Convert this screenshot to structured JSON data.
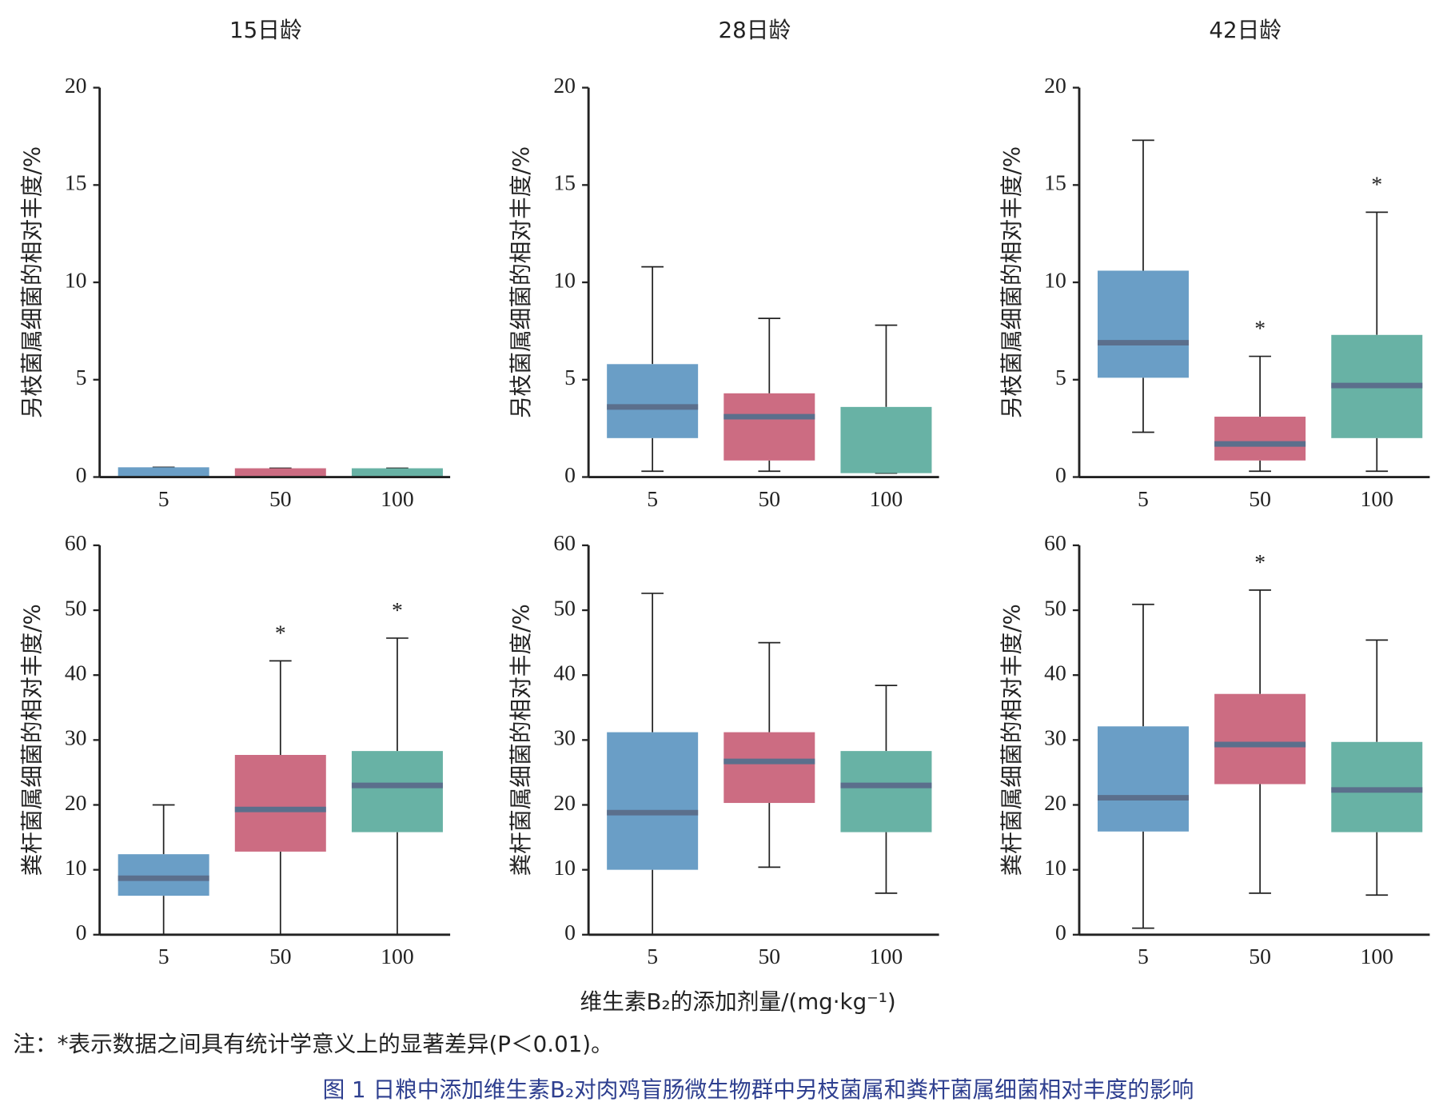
{
  "chart_data": [
    {
      "type": "box",
      "title": "15日龄",
      "ylabel": "另枝菌属细菌的相对丰度/%",
      "categories": [
        "5",
        "50",
        "100"
      ],
      "ylim": [
        0,
        20
      ],
      "yticks": [
        0,
        5,
        10,
        15,
        20
      ],
      "colors": [
        "#6a9ec6",
        "#cc6c82",
        "#68b2a5"
      ],
      "median_color": "#5b6f8c",
      "boxes": [
        {
          "min": 0,
          "q1": 0,
          "median": 0,
          "q3": 0.5,
          "max": 0.5
        },
        {
          "min": 0,
          "q1": 0,
          "median": 0,
          "q3": 0.45,
          "max": 0.45
        },
        {
          "min": 0,
          "q1": 0,
          "median": 0,
          "q3": 0.45,
          "max": 0.45
        }
      ],
      "annotations": [
        null,
        null,
        null
      ]
    },
    {
      "type": "box",
      "title": "28日龄",
      "ylabel": "另枝菌属细菌的相对丰度/%",
      "categories": [
        "5",
        "50",
        "100"
      ],
      "ylim": [
        0,
        20
      ],
      "yticks": [
        0,
        5,
        10,
        15,
        20
      ],
      "colors": [
        "#6a9ec6",
        "#cc6c82",
        "#68b2a5"
      ],
      "median_color": "#5b6f8c",
      "boxes": [
        {
          "min": 0.3,
          "q1": 2.0,
          "median": 3.6,
          "q3": 5.8,
          "max": 10.8
        },
        {
          "min": 0.3,
          "q1": 0.85,
          "median": 3.1,
          "q3": 4.3,
          "max": 8.15
        },
        {
          "min": 0.2,
          "q1": 0.2,
          "median": 0.2,
          "q3": 3.6,
          "max": 7.8
        }
      ],
      "annotations": [
        null,
        null,
        null
      ]
    },
    {
      "type": "box",
      "title": "42日龄",
      "ylabel": "另枝菌属细菌的相对丰度/%",
      "categories": [
        "5",
        "50",
        "100"
      ],
      "ylim": [
        0,
        20
      ],
      "yticks": [
        0,
        5,
        10,
        15,
        20
      ],
      "colors": [
        "#6a9ec6",
        "#cc6c82",
        "#68b2a5"
      ],
      "median_color": "#5b6f8c",
      "boxes": [
        {
          "min": 2.3,
          "q1": 5.1,
          "median": 6.9,
          "q3": 10.6,
          "max": 17.3
        },
        {
          "min": 0.3,
          "q1": 0.85,
          "median": 1.7,
          "q3": 3.1,
          "max": 6.2
        },
        {
          "min": 0.3,
          "q1": 2.0,
          "median": 4.7,
          "q3": 7.3,
          "max": 13.6
        }
      ],
      "annotations": [
        null,
        "*",
        "*"
      ]
    },
    {
      "type": "box",
      "ylabel": "粪杆菌属细菌的相对丰度/%",
      "categories": [
        "5",
        "50",
        "100"
      ],
      "ylim": [
        0,
        60
      ],
      "yticks": [
        0,
        10,
        20,
        30,
        40,
        50,
        60
      ],
      "colors": [
        "#6a9ec6",
        "#cc6c82",
        "#68b2a5"
      ],
      "median_color": "#5b6f8c",
      "boxes": [
        {
          "min": 0,
          "q1": 6.0,
          "median": 8.7,
          "q3": 12.4,
          "max": 20
        },
        {
          "min": 0,
          "q1": 12.8,
          "median": 19.3,
          "q3": 27.7,
          "max": 42.2
        },
        {
          "min": 0,
          "q1": 15.8,
          "median": 23.0,
          "q3": 28.3,
          "max": 45.7
        }
      ],
      "annotations": [
        null,
        "*",
        "*"
      ]
    },
    {
      "type": "box",
      "ylabel": "粪杆菌属细菌的相对丰度/%",
      "categories": [
        "5",
        "50",
        "100"
      ],
      "ylim": [
        0,
        60
      ],
      "yticks": [
        0,
        10,
        20,
        30,
        40,
        50,
        60
      ],
      "colors": [
        "#6a9ec6",
        "#cc6c82",
        "#68b2a5"
      ],
      "median_color": "#5b6f8c",
      "boxes": [
        {
          "min": 0,
          "q1": 10.0,
          "median": 18.8,
          "q3": 31.2,
          "max": 52.6
        },
        {
          "min": 10.4,
          "q1": 20.3,
          "median": 26.7,
          "q3": 31.2,
          "max": 45
        },
        {
          "min": 6.4,
          "q1": 15.8,
          "median": 23.0,
          "q3": 28.3,
          "max": 38.4
        }
      ],
      "annotations": [
        null,
        null,
        null
      ]
    },
    {
      "type": "box",
      "ylabel": "粪杆菌属细菌的相对丰度/%",
      "categories": [
        "5",
        "50",
        "100"
      ],
      "ylim": [
        0,
        60
      ],
      "yticks": [
        0,
        10,
        20,
        30,
        40,
        50,
        60
      ],
      "colors": [
        "#6a9ec6",
        "#cc6c82",
        "#68b2a5"
      ],
      "median_color": "#5b6f8c",
      "boxes": [
        {
          "min": 1.0,
          "q1": 15.9,
          "median": 21.1,
          "q3": 32.1,
          "max": 50.9
        },
        {
          "min": 6.4,
          "q1": 23.2,
          "median": 29.3,
          "q3": 37.1,
          "max": 53.1
        },
        {
          "min": 6.1,
          "q1": 15.8,
          "median": 22.3,
          "q3": 29.7,
          "max": 45.4
        }
      ],
      "annotations": [
        null,
        "*",
        null
      ]
    }
  ],
  "xlabel": "维生素B₂的添加剂量/(mg·kg⁻¹)",
  "note": "注：*表示数据之间具有统计学意义上的显著差异(P＜0.01)。",
  "caption": "图 1  日粮中添加维生素B₂对肉鸡盲肠微生物群中另枝菌属和粪杆菌属细菌相对丰度的影响"
}
